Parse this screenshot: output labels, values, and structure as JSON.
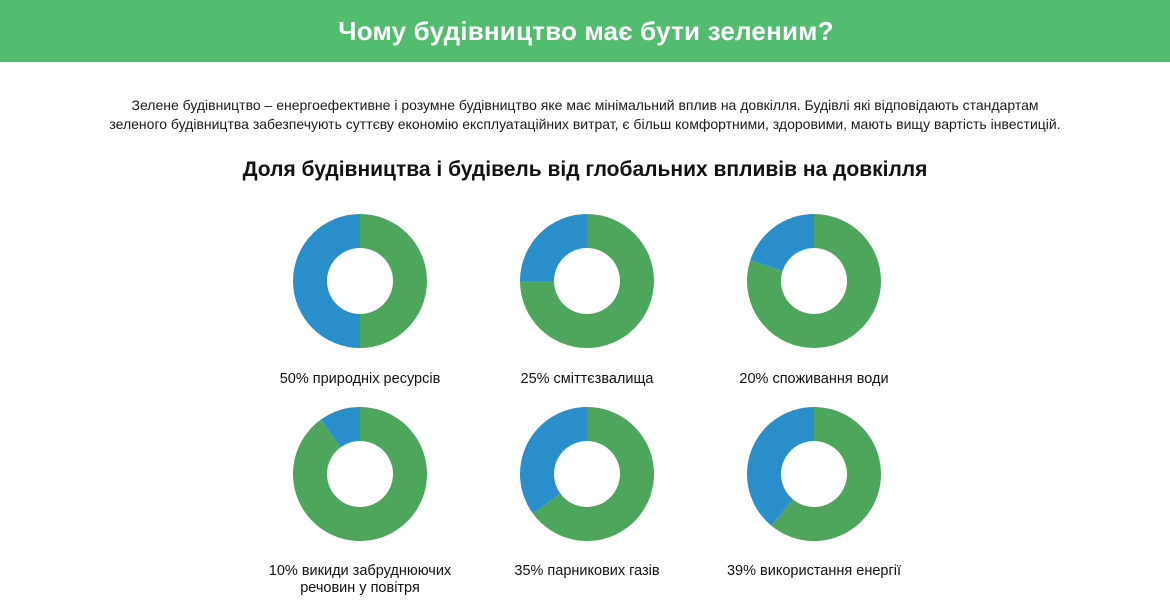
{
  "header": {
    "title": "Чому будівництво має бути зеленим?"
  },
  "intro": {
    "line1": "Зелене будівництво – енергоефективне і  розумне будівництво яке має мінімальний вплив на довкілля.  Будівлі  які відповідають стандартам",
    "line2": "зеленого будівництва забезпечують суттєву економію експлуатаційних витрат, є більш комфортними, здоровими, мають вищу вартість інвестицій."
  },
  "colors": {
    "header": "#52bd6f",
    "share": "#2a8ecb",
    "remainder": "#4ea65d"
  },
  "chart_data": {
    "type": "pie",
    "title": "Доля будівництва і будівель від глобальних впливів на довкілля",
    "charts": [
      {
        "label": "50% природніх ресурсів",
        "share": 50
      },
      {
        "label": "25% сміттєзвалища",
        "share": 25
      },
      {
        "label": "20% споживання води",
        "share": 20
      },
      {
        "label": "10% викиди забруднюючих речовин у повітря",
        "share": 10
      },
      {
        "label": "35% парникових газів",
        "share": 35
      },
      {
        "label": "39% використання енергії",
        "share": 39
      }
    ]
  }
}
